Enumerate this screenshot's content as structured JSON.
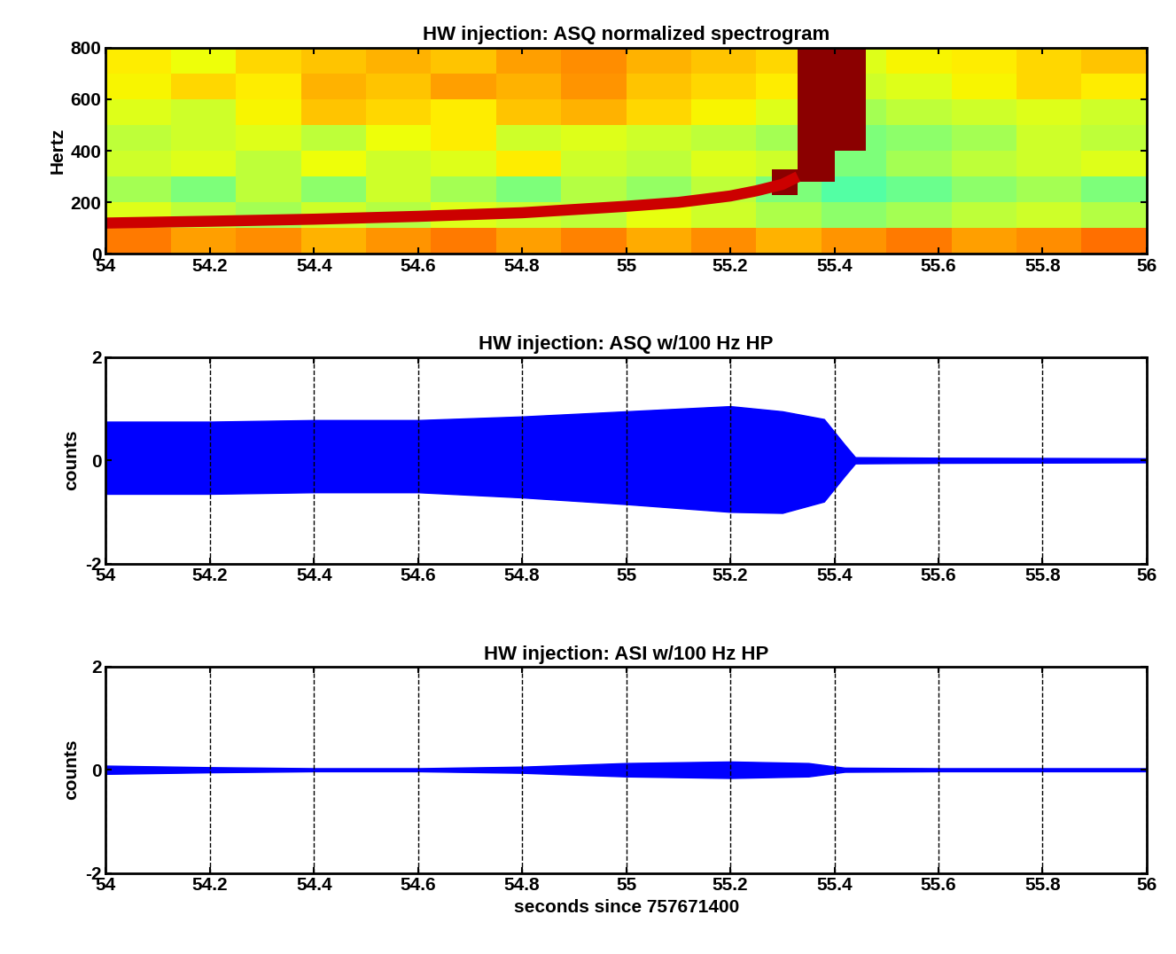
{
  "chart_data": [
    {
      "type": "heatmap",
      "title": "HW injection: ASQ normalized spectrogram",
      "ylabel": "Hertz",
      "xlim": [
        54,
        56
      ],
      "ylim": [
        0,
        800
      ],
      "xticks": [
        54,
        54.2,
        54.4,
        54.6,
        54.8,
        55,
        55.2,
        55.4,
        55.6,
        55.8,
        56
      ],
      "yticks": [
        0,
        200,
        400,
        600,
        800
      ],
      "grid": false,
      "x_edges": [
        54,
        54.125,
        54.25,
        54.375,
        54.5,
        54.625,
        54.75,
        54.875,
        55,
        55.125,
        55.25,
        55.375,
        55.5,
        55.625,
        55.75,
        55.875,
        56
      ],
      "y_edges": [
        0,
        100,
        200,
        300,
        400,
        500,
        600,
        700,
        800
      ],
      "color_range": [
        0,
        1
      ],
      "cells": [
        [
          0.78,
          0.74,
          0.76,
          0.72,
          0.75,
          0.78,
          0.74,
          0.77,
          0.73,
          0.76,
          0.72,
          0.75,
          0.78,
          0.74,
          0.76,
          0.79
        ],
        [
          0.62,
          0.58,
          0.55,
          0.6,
          0.57,
          0.62,
          0.6,
          0.58,
          0.63,
          0.6,
          0.56,
          0.52,
          0.55,
          0.58,
          0.6,
          0.57
        ],
        [
          0.55,
          0.5,
          0.58,
          0.52,
          0.6,
          0.55,
          0.5,
          0.57,
          0.53,
          0.58,
          0.5,
          0.45,
          0.48,
          0.52,
          0.55,
          0.5
        ],
        [
          0.6,
          0.62,
          0.58,
          0.64,
          0.6,
          0.62,
          0.66,
          0.6,
          0.58,
          0.62,
          0.6,
          0.5,
          0.55,
          0.58,
          0.6,
          0.62
        ],
        [
          0.58,
          0.6,
          0.62,
          0.58,
          0.64,
          0.66,
          0.6,
          0.62,
          0.6,
          0.58,
          0.55,
          0.5,
          0.52,
          0.55,
          0.6,
          0.58
        ],
        [
          0.62,
          0.6,
          0.65,
          0.7,
          0.68,
          0.66,
          0.7,
          0.72,
          0.68,
          0.65,
          0.62,
          0.55,
          0.58,
          0.6,
          0.62,
          0.6
        ],
        [
          0.65,
          0.68,
          0.66,
          0.72,
          0.7,
          0.74,
          0.72,
          0.75,
          0.7,
          0.68,
          0.66,
          0.6,
          0.62,
          0.65,
          0.68,
          0.66
        ],
        [
          0.66,
          0.64,
          0.68,
          0.7,
          0.72,
          0.7,
          0.74,
          0.76,
          0.72,
          0.7,
          0.68,
          0.62,
          0.65,
          0.66,
          0.68,
          0.7
        ]
      ],
      "track": {
        "x": [
          54,
          54.2,
          54.4,
          54.6,
          54.8,
          55,
          55.1,
          55.2,
          55.25,
          55.3,
          55.33
        ],
        "y": [
          120,
          127,
          135,
          146,
          160,
          185,
          200,
          225,
          245,
          270,
          300
        ],
        "color": "#cc0000"
      },
      "bursts": {
        "t_start": [
          55.28,
          55.33,
          55.4
        ],
        "t_end": [
          55.33,
          55.4,
          55.46
        ],
        "f_low": [
          230,
          280,
          400
        ],
        "f_high": [
          330,
          800,
          800
        ],
        "color": "#8b0000"
      }
    },
    {
      "type": "band",
      "title": "HW injection: ASQ w/100 Hz HP",
      "ylabel": "counts",
      "xlim": [
        54,
        56
      ],
      "ylim": [
        -2,
        2
      ],
      "xticks": [
        54,
        54.2,
        54.4,
        54.6,
        54.8,
        55,
        55.2,
        55.4,
        55.6,
        55.8,
        56
      ],
      "yticks": [
        -2,
        0,
        2
      ],
      "grid": "x",
      "color": "#0000ff",
      "x": [
        54,
        54.2,
        54.4,
        54.6,
        54.8,
        55,
        55.2,
        55.3,
        55.38,
        55.42,
        55.44,
        55.6,
        56
      ],
      "upper": [
        0.75,
        0.75,
        0.78,
        0.78,
        0.85,
        0.95,
        1.05,
        0.95,
        0.8,
        0.3,
        0.06,
        0.05,
        0.04
      ],
      "lower": [
        -0.65,
        -0.65,
        -0.62,
        -0.62,
        -0.72,
        -0.85,
        -1.0,
        -1.02,
        -0.8,
        -0.3,
        -0.06,
        -0.05,
        -0.04
      ]
    },
    {
      "type": "band",
      "title": "HW injection: ASI w/100 Hz HP",
      "ylabel": "counts",
      "xlabel": "seconds since 757671400",
      "xlim": [
        54,
        56
      ],
      "ylim": [
        -2,
        2
      ],
      "xticks": [
        54,
        54.2,
        54.4,
        54.6,
        54.8,
        55,
        55.2,
        55.4,
        55.6,
        55.8,
        56
      ],
      "yticks": [
        -2,
        0,
        2
      ],
      "grid": "x",
      "color": "#0000ff",
      "x": [
        54,
        54.2,
        54.4,
        54.6,
        54.8,
        55,
        55.2,
        55.35,
        55.42,
        55.6,
        56
      ],
      "upper": [
        0.08,
        0.05,
        0.03,
        0.03,
        0.06,
        0.13,
        0.16,
        0.13,
        0.04,
        0.03,
        0.03
      ],
      "lower": [
        -0.08,
        -0.05,
        -0.03,
        -0.03,
        -0.06,
        -0.13,
        -0.16,
        -0.13,
        -0.04,
        -0.03,
        -0.03
      ]
    }
  ]
}
